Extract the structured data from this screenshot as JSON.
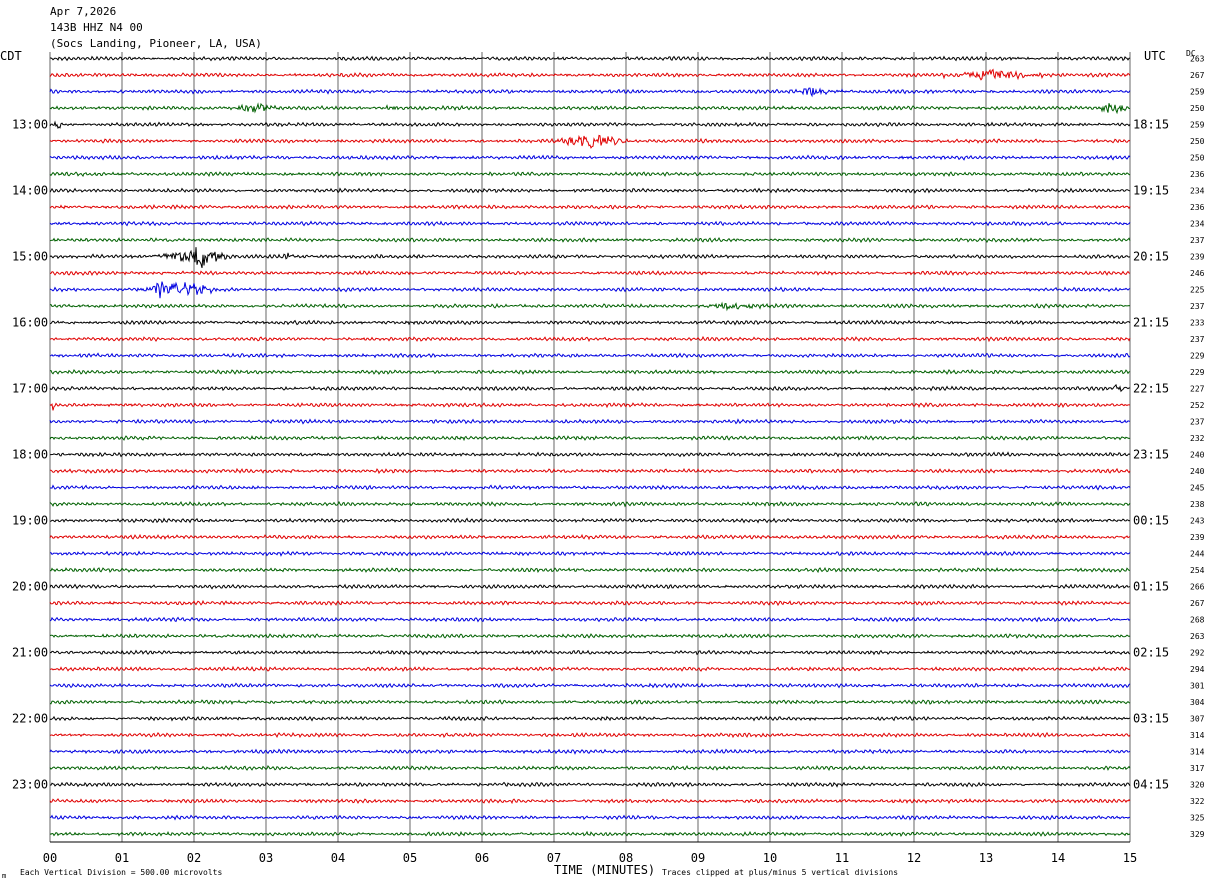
{
  "header": {
    "date": "Apr 7,2026",
    "channel": "143B HHZ N4 00",
    "location": "(Socs Landing, Pioneer, LA, USA)"
  },
  "labels": {
    "left_tz": "CDT",
    "right_tz": "UTC",
    "dc": "DC",
    "xlabel": "TIME (MINUTES)",
    "vertical_division": "Each Vertical Division =  500.00 microvolts",
    "clipping": "Traces clipped at plus/minus 5 vertical divisions",
    "corner_mark": "m"
  },
  "colors": {
    "trace_cycle": [
      "#000000",
      "#e00000",
      "#0000e0",
      "#006000"
    ],
    "grid": "#000000"
  },
  "chart_data": {
    "type": "line",
    "description_free": true,
    "xlim": [
      0,
      15
    ],
    "x_ticks": [
      "00",
      "01",
      "02",
      "03",
      "04",
      "05",
      "06",
      "07",
      "08",
      "09",
      "10",
      "11",
      "12",
      "13",
      "14",
      "15"
    ],
    "traces_per_hour": 4,
    "left_hour_labels": [
      "13:00",
      "14:00",
      "15:00",
      "16:00",
      "17:00",
      "18:00",
      "19:00",
      "20:00",
      "21:00",
      "22:00",
      "23:00"
    ],
    "right_hour_labels": [
      "18:15",
      "19:15",
      "20:15",
      "21:15",
      "22:15",
      "23:15",
      "00:15",
      "01:15",
      "02:15",
      "03:15",
      "04:15"
    ],
    "dc_values": [
      263,
      267,
      259,
      250,
      259,
      250,
      250,
      236,
      234,
      236,
      234,
      237,
      239,
      246,
      225,
      237,
      233,
      237,
      229,
      229,
      227,
      252,
      237,
      232,
      240,
      240,
      245,
      238,
      243,
      239,
      244,
      254,
      266,
      267,
      268,
      263,
      292,
      294,
      301,
      304,
      307,
      314,
      314,
      317,
      320,
      322,
      325,
      329
    ],
    "events": [
      {
        "trace": 1,
        "start": 12.4,
        "end": 13.8,
        "amp": 0.9
      },
      {
        "trace": 2,
        "start": 10.2,
        "end": 11.0,
        "amp": 0.6
      },
      {
        "trace": 3,
        "start": 2.5,
        "end": 3.2,
        "amp": 0.8
      },
      {
        "trace": 3,
        "start": 4.5,
        "end": 4.9,
        "amp": 0.5
      },
      {
        "trace": 3,
        "start": 14.5,
        "end": 15.0,
        "amp": 1.0
      },
      {
        "trace": 4,
        "start": 0.0,
        "end": 0.2,
        "amp": 0.9
      },
      {
        "trace": 5,
        "start": 7.0,
        "end": 8.1,
        "amp": 1.1
      },
      {
        "trace": 12,
        "start": 1.4,
        "end": 2.6,
        "amp": 1.3
      },
      {
        "trace": 12,
        "start": 2.0,
        "end": 2.2,
        "amp": 2.4
      },
      {
        "trace": 12,
        "start": 3.2,
        "end": 3.4,
        "amp": 0.5
      },
      {
        "trace": 14,
        "start": 1.2,
        "end": 2.4,
        "amp": 1.2
      },
      {
        "trace": 14,
        "start": 1.4,
        "end": 1.6,
        "amp": 1.6
      },
      {
        "trace": 15,
        "start": 9.0,
        "end": 10.0,
        "amp": 0.6
      },
      {
        "trace": 20,
        "start": 14.7,
        "end": 15.0,
        "amp": 0.8
      },
      {
        "trace": 21,
        "start": 0.0,
        "end": 0.1,
        "amp": 0.8
      }
    ]
  }
}
